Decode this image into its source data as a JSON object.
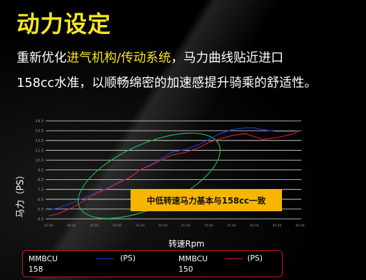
{
  "title": "动力设定",
  "desc": {
    "part1": "重新优化",
    "highlight": "进气机构/传动系统",
    "part2": "，马力曲线贴近进口",
    "line2": "158cc水准，以顺畅绵密的加速感提升骑乘的舒适性。"
  },
  "callout": "中低转速马力基本与158cc一致",
  "colors": {
    "accent": "#f5e71d",
    "callout_bg": "#f7b500",
    "legend_border": "#c81818",
    "ellipse": "#1db954"
  },
  "chart_data": {
    "type": "line",
    "xlabel": "转速Rpm",
    "ylabel": "马力（PS）",
    "x_ticks": [
      "35.00",
      "40.00",
      "45.00",
      "50.00",
      "55.00",
      "60.00",
      "65.00",
      "70.00",
      "75.00",
      "80.00",
      "85.00",
      "90.00"
    ],
    "y_ticks": [
      "4.5",
      "5.5",
      "6.5",
      "7.5",
      "8.5",
      "9.5",
      "10.5",
      "11.5",
      "12.5",
      "13.5",
      "14.5"
    ],
    "xlim": [
      35,
      90
    ],
    "ylim": [
      4.5,
      14.5
    ],
    "grid": "horizontal",
    "legend_position": "bottom",
    "series": [
      {
        "name": "MMBCU 158",
        "unit": "(PS)",
        "color": "#1a3fd6",
        "x": [
          35,
          37,
          40,
          43,
          45,
          48,
          50,
          53,
          55,
          58,
          60,
          62,
          65,
          68,
          70,
          72,
          75,
          78,
          80,
          82,
          85,
          88,
          90
        ],
        "y": [
          5.4,
          5.6,
          6.1,
          6.7,
          7.1,
          7.7,
          8.2,
          8.8,
          9.5,
          10.2,
          10.8,
          11.3,
          11.6,
          12.1,
          12.6,
          13.1,
          13.6,
          13.8,
          13.8,
          13.6,
          13.4,
          13.4,
          13.5
        ]
      },
      {
        "name": "MMBCU 150",
        "unit": "(PS)",
        "color": "#e0202a",
        "x": [
          35,
          37,
          40,
          43,
          45,
          48,
          50,
          53,
          55,
          58,
          60,
          62,
          65,
          68,
          70,
          72,
          75,
          78,
          80,
          82,
          85,
          88,
          90
        ],
        "y": [
          4.8,
          5.0,
          5.6,
          6.4,
          7.0,
          7.6,
          8.1,
          8.8,
          9.5,
          10.1,
          10.6,
          11.0,
          11.3,
          11.8,
          12.3,
          12.6,
          13.0,
          13.2,
          12.9,
          12.6,
          12.8,
          13.1,
          13.5
        ]
      }
    ]
  }
}
